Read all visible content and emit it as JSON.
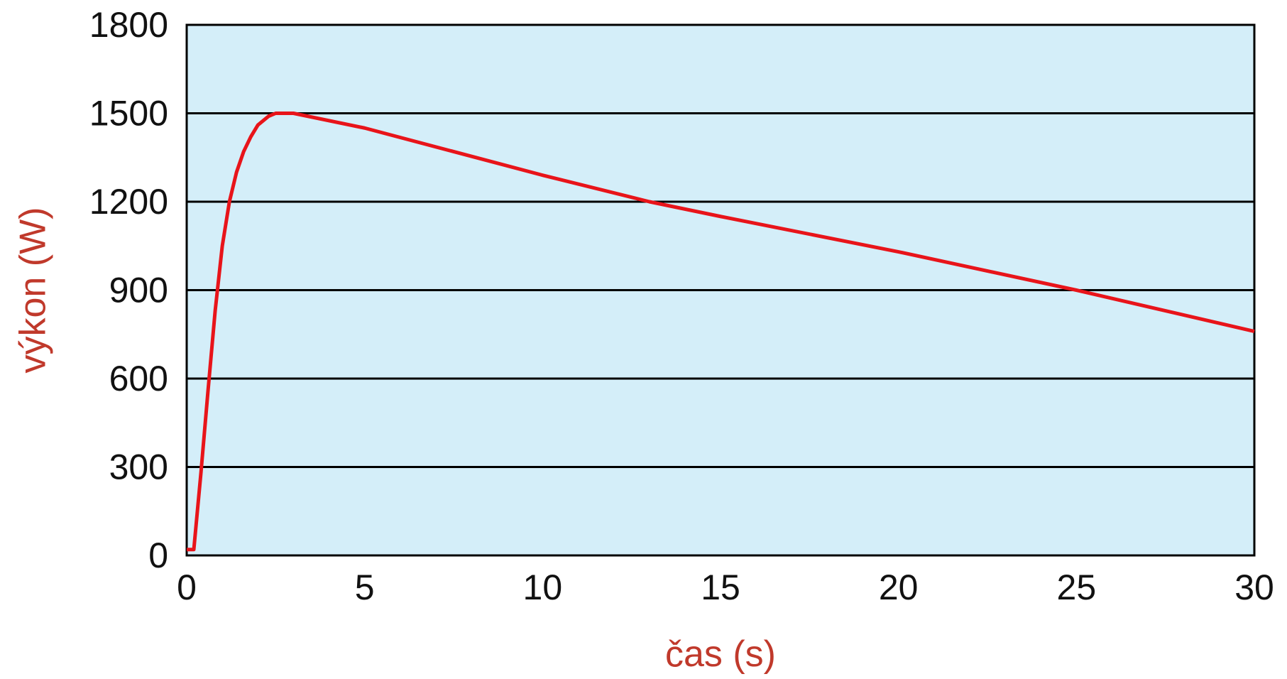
{
  "chart_data": {
    "type": "line",
    "title": "",
    "xlabel": "čas (s)",
    "ylabel": "výkon (W)",
    "xlim": [
      0,
      30
    ],
    "ylim": [
      0,
      1800
    ],
    "xticks": [
      0,
      5,
      10,
      15,
      20,
      25,
      30
    ],
    "yticks": [
      0,
      300,
      600,
      900,
      1200,
      1500,
      1800
    ],
    "xtick_labels": [
      "0",
      "5",
      "10",
      "15",
      "20",
      "25",
      "30"
    ],
    "ytick_labels": [
      "0",
      "300",
      "600",
      "900",
      "1200",
      "1500",
      "1800"
    ],
    "grid": "horizontal",
    "legend": "none",
    "colors": {
      "plot_background": "#d4eef9",
      "line": "#e8141a",
      "grid": "#000000",
      "axis_title": "#c0392b",
      "tick_label": "#111111"
    },
    "series": [
      {
        "points": [
          [
            0.0,
            20
          ],
          [
            0.2,
            20
          ],
          [
            0.4,
            280
          ],
          [
            0.6,
            560
          ],
          [
            0.8,
            830
          ],
          [
            1.0,
            1050
          ],
          [
            1.2,
            1200
          ],
          [
            1.4,
            1300
          ],
          [
            1.6,
            1370
          ],
          [
            1.8,
            1420
          ],
          [
            2.0,
            1460
          ],
          [
            2.3,
            1490
          ],
          [
            2.5,
            1500
          ],
          [
            3.0,
            1500
          ],
          [
            5,
            1450
          ],
          [
            10,
            1290
          ],
          [
            13,
            1200
          ],
          [
            15,
            1150
          ],
          [
            20,
            1030
          ],
          [
            25,
            900
          ],
          [
            30,
            760
          ]
        ]
      }
    ]
  }
}
